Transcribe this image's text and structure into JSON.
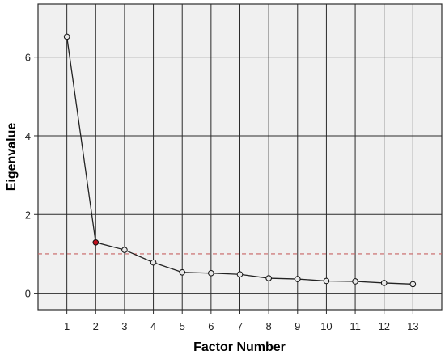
{
  "chart_data": {
    "type": "line",
    "xlabel": "Factor Number",
    "ylabel": "Eigenvalue",
    "x": [
      1,
      2,
      3,
      4,
      5,
      6,
      7,
      8,
      9,
      10,
      11,
      12,
      13
    ],
    "series": [
      {
        "values": [
          6.52,
          1.29,
          1.1,
          0.78,
          0.53,
          0.51,
          0.48,
          0.38,
          0.36,
          0.31,
          0.3,
          0.26,
          0.23
        ]
      }
    ],
    "xlim": [
      0,
      14
    ],
    "ylim": [
      -0.42,
      7.35
    ],
    "yticks": [
      0,
      2,
      4,
      6
    ],
    "xticks": [
      1,
      2,
      3,
      4,
      5,
      6,
      7,
      8,
      9,
      10,
      11,
      12,
      13
    ],
    "reference_line": {
      "y": 1,
      "style": "dashed",
      "color": "#c86464"
    },
    "highlight_point": {
      "x": 2,
      "color": "#c0101e"
    },
    "point_color": "#e8e8e8",
    "grid": true,
    "background": "#f0f0f0"
  }
}
